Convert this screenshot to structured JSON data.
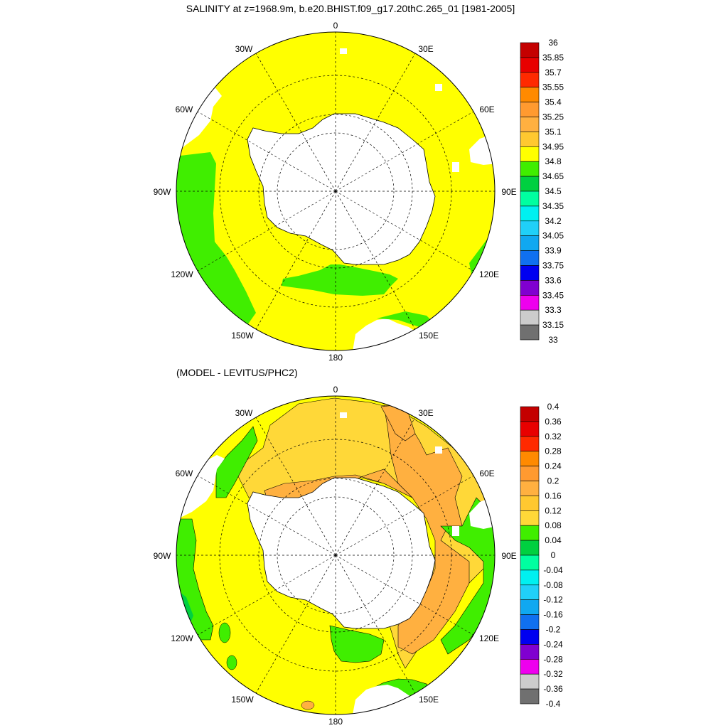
{
  "top_panel": {
    "title": "SALINITY at z=1968.9m, b.e20.BHIST.f09_g17.20thC.265_01 [1981-2005]",
    "colorbar": {
      "labels": [
        "36",
        "35.85",
        "35.7",
        "35.55",
        "35.4",
        "35.25",
        "35.1",
        "34.95",
        "34.8",
        "34.65",
        "34.5",
        "34.35",
        "34.2",
        "34.05",
        "33.9",
        "33.75",
        "33.6",
        "33.45",
        "33.3",
        "33.15",
        "33"
      ],
      "colors": [
        "#c40000",
        "#e80000",
        "#ff2a00",
        "#ff8a00",
        "#ff9a30",
        "#ffb040",
        "#ffc830",
        "#ffff00",
        "#40ee00",
        "#00d040",
        "#00ffa0",
        "#00f0f0",
        "#20d0f8",
        "#10a8f0",
        "#1070f0",
        "#0000f0",
        "#8000d0",
        "#ee00ee",
        "#cccccc",
        "#707070"
      ]
    }
  },
  "bottom_panel": {
    "title": "(MODEL - LEVITUS/PHC2)",
    "colorbar": {
      "labels": [
        "0.4",
        "0.36",
        "0.32",
        "0.28",
        "0.24",
        "0.2",
        "0.16",
        "0.12",
        "0.08",
        "0.04",
        "0",
        "-0.04",
        "-0.08",
        "-0.12",
        "-0.16",
        "-0.2",
        "-0.24",
        "-0.28",
        "-0.32",
        "-0.36",
        "-0.4"
      ],
      "colors": [
        "#c40000",
        "#e80000",
        "#ff2a00",
        "#ff8a00",
        "#ff9a30",
        "#ffb040",
        "#ffc830",
        "#ffd838",
        "#40ee00",
        "#00d040",
        "#00ffa0",
        "#00f0f0",
        "#20d0f8",
        "#10a8f0",
        "#1070f0",
        "#0000f0",
        "#8000d0",
        "#ee00ee",
        "#cccccc",
        "#707070"
      ]
    }
  },
  "lon_labels": {
    "n0": "0",
    "e30": "30E",
    "e60": "60E",
    "e90": "90E",
    "e120": "120E",
    "e150": "150E",
    "s180": "180",
    "w150": "150W",
    "w120": "120W",
    "w90": "90W",
    "w60": "60W",
    "w30": "30W"
  },
  "map_colors": {
    "ocean_top": "#ffff00",
    "green": "#40ee00",
    "land": "#ffffff",
    "orange_light": "#ffd838",
    "orange": "#ffb040",
    "orange_dark": "#ff9a30",
    "teal": "#00d040"
  }
}
